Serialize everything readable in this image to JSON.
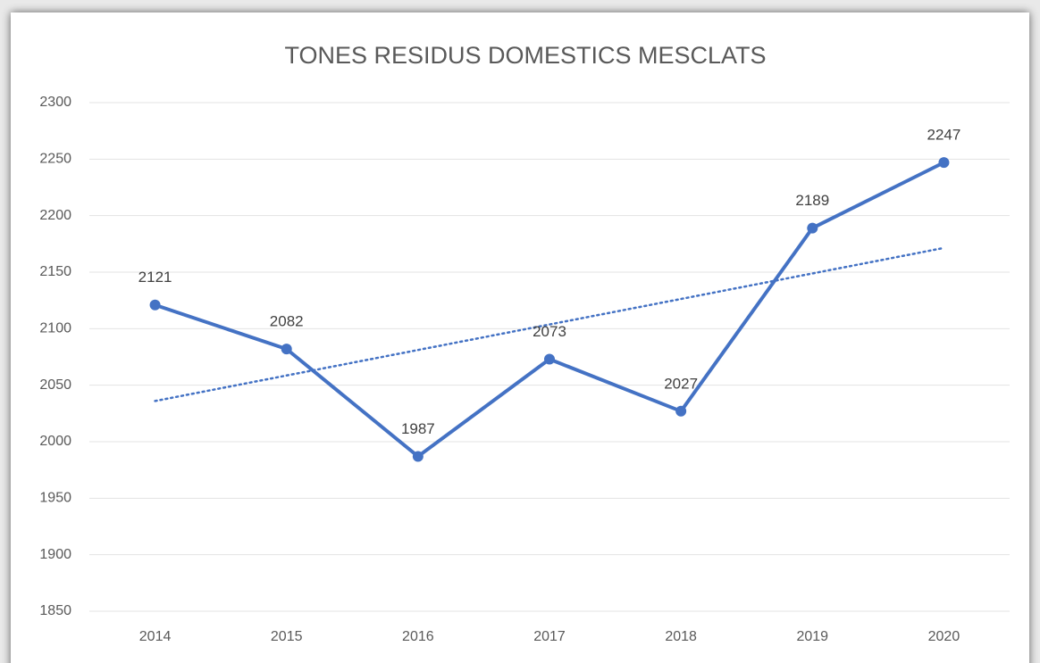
{
  "chart_data": {
    "type": "line",
    "title": "TONES RESIDUS DOMESTICS MESCLATS",
    "categories": [
      "2014",
      "2015",
      "2016",
      "2017",
      "2018",
      "2019",
      "2020"
    ],
    "values": [
      2121,
      2082,
      1987,
      2073,
      2027,
      2189,
      2247
    ],
    "color": "#4472c4",
    "ylim": [
      1850,
      2300
    ],
    "yticks": [
      1850,
      1900,
      1950,
      2000,
      2050,
      2100,
      2150,
      2200,
      2250,
      2300
    ],
    "grid": true,
    "trendline": "linear",
    "data_labels": true
  }
}
